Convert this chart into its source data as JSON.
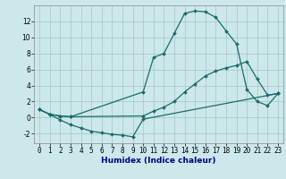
{
  "xlabel": "Humidex (Indice chaleur)",
  "bg_color": "#cce8ea",
  "grid_color": "#aacccc",
  "line_color": "#1a6b6b",
  "xlim": [
    -0.5,
    23.5
  ],
  "ylim": [
    -3.2,
    14.0
  ],
  "xticks": [
    0,
    1,
    2,
    3,
    4,
    5,
    6,
    7,
    8,
    9,
    10,
    11,
    12,
    13,
    14,
    15,
    16,
    17,
    18,
    19,
    20,
    21,
    22,
    23
  ],
  "yticks": [
    -2,
    0,
    2,
    4,
    6,
    8,
    10,
    12
  ],
  "line1_x": [
    0,
    1,
    2,
    3,
    10,
    11,
    12,
    13,
    14,
    15,
    16,
    17,
    18,
    19,
    20,
    21,
    22,
    23
  ],
  "line1_y": [
    1.0,
    0.4,
    0.2,
    0.1,
    3.2,
    7.5,
    8.0,
    10.5,
    13.0,
    13.3,
    13.2,
    12.5,
    10.8,
    9.2,
    3.5,
    2.0,
    1.5,
    3.0
  ],
  "line2_x": [
    0,
    1,
    2,
    3,
    10,
    11,
    12,
    13,
    14,
    15,
    16,
    17,
    18,
    19,
    20,
    21,
    22,
    23
  ],
  "line2_y": [
    1.0,
    0.4,
    0.2,
    0.1,
    0.2,
    0.8,
    1.3,
    2.0,
    3.2,
    4.2,
    5.2,
    5.8,
    6.2,
    6.5,
    7.0,
    4.8,
    2.8,
    3.0
  ],
  "line3_x": [
    0,
    1,
    2,
    3,
    4,
    5,
    6,
    7,
    8,
    9,
    10,
    23
  ],
  "line3_y": [
    1.0,
    0.4,
    -0.3,
    -0.9,
    -1.3,
    -1.7,
    -1.9,
    -2.1,
    -2.2,
    -2.4,
    -0.2,
    3.0
  ],
  "xlabel_color": "#000080",
  "xlabel_fontsize": 6.5,
  "tick_fontsize": 5.5,
  "marker_size": 2.0,
  "line_width": 0.9
}
